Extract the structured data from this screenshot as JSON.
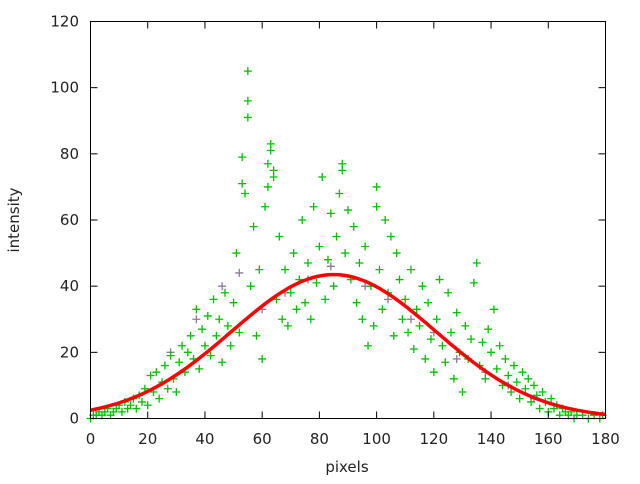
{
  "chart_data": {
    "type": "scatter",
    "title": "",
    "xlabel": "pixels",
    "ylabel": "intensity",
    "xlim": [
      0,
      180
    ],
    "ylim": [
      0,
      120
    ],
    "xticks": [
      0,
      20,
      40,
      60,
      80,
      100,
      120,
      140,
      160,
      180
    ],
    "yticks": [
      0,
      20,
      40,
      60,
      80,
      100,
      120
    ],
    "grid": false,
    "legend": "none",
    "series": [
      {
        "kind": "points",
        "color": "#00c000",
        "marker": "plus",
        "points": [
          [
            0,
            0
          ],
          [
            1,
            1
          ],
          [
            2,
            1
          ],
          [
            3,
            2
          ],
          [
            4,
            1
          ],
          [
            5,
            2
          ],
          [
            6,
            3
          ],
          [
            7,
            1
          ],
          [
            8,
            2
          ],
          [
            9,
            3
          ],
          [
            10,
            4
          ],
          [
            11,
            2
          ],
          [
            12,
            5
          ],
          [
            13,
            3
          ],
          [
            14,
            4
          ],
          [
            15,
            6
          ],
          [
            16,
            3
          ],
          [
            17,
            7
          ],
          [
            18,
            5
          ],
          [
            19,
            9
          ],
          [
            20,
            4
          ],
          [
            21,
            13
          ],
          [
            22,
            8
          ],
          [
            23,
            14
          ],
          [
            24,
            6
          ],
          [
            25,
            11
          ],
          [
            26,
            16
          ],
          [
            27,
            9
          ],
          [
            28,
            19
          ],
          [
            29,
            12
          ],
          [
            30,
            8
          ],
          [
            31,
            17
          ],
          [
            32,
            22
          ],
          [
            33,
            14
          ],
          [
            34,
            20
          ],
          [
            35,
            25
          ],
          [
            36,
            18
          ],
          [
            37,
            33
          ],
          [
            38,
            15
          ],
          [
            39,
            27
          ],
          [
            40,
            22
          ],
          [
            41,
            31
          ],
          [
            42,
            19
          ],
          [
            43,
            36
          ],
          [
            44,
            25
          ],
          [
            45,
            30
          ],
          [
            46,
            17
          ],
          [
            47,
            38
          ],
          [
            48,
            28
          ],
          [
            49,
            22
          ],
          [
            50,
            35
          ],
          [
            51,
            50
          ],
          [
            52,
            26
          ],
          [
            53,
            79
          ],
          [
            53,
            71
          ],
          [
            54,
            68
          ],
          [
            55,
            105
          ],
          [
            55,
            96
          ],
          [
            55,
            91
          ],
          [
            56,
            40
          ],
          [
            57,
            58
          ],
          [
            58,
            25
          ],
          [
            59,
            45
          ],
          [
            60,
            18
          ],
          [
            61,
            64
          ],
          [
            62,
            77
          ],
          [
            62,
            70
          ],
          [
            63,
            83
          ],
          [
            63,
            81
          ],
          [
            64,
            75
          ],
          [
            64,
            73
          ],
          [
            65,
            36
          ],
          [
            66,
            55
          ],
          [
            67,
            30
          ],
          [
            68,
            45
          ],
          [
            69,
            28
          ],
          [
            70,
            38
          ],
          [
            71,
            50
          ],
          [
            72,
            33
          ],
          [
            73,
            42
          ],
          [
            74,
            60
          ],
          [
            75,
            35
          ],
          [
            76,
            47
          ],
          [
            77,
            30
          ],
          [
            78,
            64
          ],
          [
            79,
            41
          ],
          [
            80,
            52
          ],
          [
            81,
            73
          ],
          [
            82,
            36
          ],
          [
            83,
            48
          ],
          [
            84,
            62
          ],
          [
            85,
            40
          ],
          [
            86,
            55
          ],
          [
            87,
            68
          ],
          [
            88,
            77
          ],
          [
            88,
            75
          ],
          [
            89,
            50
          ],
          [
            90,
            63
          ],
          [
            91,
            42
          ],
          [
            92,
            58
          ],
          [
            93,
            35
          ],
          [
            94,
            47
          ],
          [
            95,
            30
          ],
          [
            96,
            52
          ],
          [
            97,
            22
          ],
          [
            98,
            40
          ],
          [
            99,
            28
          ],
          [
            100,
            70
          ],
          [
            100,
            64
          ],
          [
            101,
            45
          ],
          [
            102,
            33
          ],
          [
            103,
            60
          ],
          [
            104,
            38
          ],
          [
            105,
            55
          ],
          [
            106,
            25
          ],
          [
            107,
            50
          ],
          [
            108,
            42
          ],
          [
            109,
            30
          ],
          [
            110,
            36
          ],
          [
            111,
            26
          ],
          [
            112,
            45
          ],
          [
            113,
            21
          ],
          [
            114,
            33
          ],
          [
            115,
            28
          ],
          [
            116,
            40
          ],
          [
            117,
            18
          ],
          [
            118,
            35
          ],
          [
            119,
            24
          ],
          [
            120,
            14
          ],
          [
            121,
            30
          ],
          [
            122,
            42
          ],
          [
            123,
            22
          ],
          [
            124,
            17
          ],
          [
            125,
            38
          ],
          [
            126,
            26
          ],
          [
            127,
            12
          ],
          [
            128,
            32
          ],
          [
            129,
            20
          ],
          [
            130,
            8
          ],
          [
            131,
            28
          ],
          [
            132,
            18
          ],
          [
            133,
            24
          ],
          [
            134,
            41
          ],
          [
            135,
            47
          ],
          [
            136,
            16
          ],
          [
            137,
            23
          ],
          [
            138,
            12
          ],
          [
            139,
            27
          ],
          [
            140,
            20
          ],
          [
            141,
            33
          ],
          [
            142,
            15
          ],
          [
            143,
            22
          ],
          [
            144,
            10
          ],
          [
            145,
            18
          ],
          [
            146,
            13
          ],
          [
            147,
            8
          ],
          [
            148,
            16
          ],
          [
            149,
            11
          ],
          [
            150,
            6
          ],
          [
            151,
            14
          ],
          [
            152,
            9
          ],
          [
            153,
            12
          ],
          [
            154,
            5
          ],
          [
            155,
            10
          ],
          [
            156,
            7
          ],
          [
            157,
            3
          ],
          [
            158,
            8
          ],
          [
            159,
            5
          ],
          [
            160,
            2
          ],
          [
            161,
            6
          ],
          [
            162,
            3
          ],
          [
            163,
            4
          ],
          [
            164,
            1
          ],
          [
            165,
            3
          ],
          [
            166,
            2
          ],
          [
            167,
            1
          ],
          [
            168,
            2
          ],
          [
            169,
            0
          ],
          [
            170,
            1
          ],
          [
            172,
            1
          ],
          [
            174,
            0
          ],
          [
            176,
            1
          ],
          [
            178,
            0
          ],
          [
            179,
            1
          ]
        ]
      },
      {
        "kind": "points",
        "color": "#8a7a9a",
        "marker": "plus",
        "points": [
          [
            28,
            20
          ],
          [
            37,
            30
          ],
          [
            46,
            40
          ],
          [
            52,
            44
          ],
          [
            60,
            33
          ],
          [
            68,
            38
          ],
          [
            76,
            42
          ],
          [
            84,
            46
          ],
          [
            96,
            40
          ],
          [
            104,
            36
          ],
          [
            112,
            30
          ],
          [
            120,
            26
          ],
          [
            128,
            18
          ],
          [
            138,
            14
          ],
          [
            146,
            10
          ],
          [
            155,
            6
          ]
        ]
      },
      {
        "kind": "fit",
        "color": "#ff0000",
        "function": "gaussian",
        "amplitude": 43.5,
        "center": 85,
        "sigma": 35.6
      }
    ]
  }
}
